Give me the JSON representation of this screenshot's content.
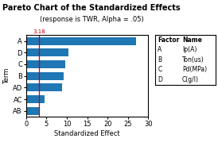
{
  "chart_data": {
    "type": "bar",
    "orientation": "horizontal",
    "title": "Pareto Chart of the Standardized Effects",
    "subtitle": "(response is TWR, Alpha = .05)",
    "xlabel": "Standardized Effect",
    "ylabel": "Term",
    "categories": [
      "AB",
      "AC",
      "AD",
      "B",
      "C",
      "D",
      "A"
    ],
    "values": [
      3.2,
      4.5,
      8.8,
      9.2,
      9.6,
      10.3,
      27.0
    ],
    "xlim": [
      0,
      30
    ],
    "xticks": [
      0,
      5,
      10,
      15,
      20,
      25,
      30
    ],
    "grid": false,
    "reference_line": {
      "value": 3.18,
      "label": "3.18",
      "color": "#cc0000"
    },
    "legend_table": {
      "header": [
        "Factor",
        "Name"
      ],
      "rows": [
        [
          "A",
          "Ip(A)"
        ],
        [
          "B",
          "Ton(us)"
        ],
        [
          "C",
          "Pd(MPa)"
        ],
        [
          "D",
          "C(g/l)"
        ]
      ]
    }
  }
}
